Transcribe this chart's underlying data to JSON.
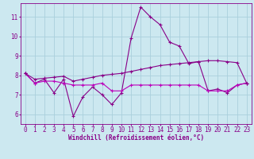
{
  "bg_color": "#cce8f0",
  "grid_color": "#aacfdc",
  "line_color": "#880088",
  "line_color2": "#bb00bb",
  "xlabel": "Windchill (Refroidissement éolien,°C)",
  "xlim": [
    -0.5,
    23.5
  ],
  "ylim": [
    5.5,
    11.7
  ],
  "yticks": [
    6,
    7,
    8,
    9,
    10,
    11
  ],
  "xticks": [
    0,
    1,
    2,
    3,
    4,
    5,
    6,
    7,
    8,
    9,
    10,
    11,
    12,
    13,
    14,
    15,
    16,
    17,
    18,
    19,
    20,
    21,
    22,
    23
  ],
  "line1_x": [
    0,
    1,
    2,
    3,
    4,
    5,
    6,
    7,
    8,
    9,
    10,
    11,
    12,
    13,
    14,
    15,
    16,
    17,
    18,
    19,
    20,
    21,
    22,
    23
  ],
  "line1_y": [
    8.1,
    7.6,
    7.8,
    7.1,
    7.8,
    5.9,
    6.9,
    7.4,
    7.0,
    6.5,
    7.1,
    9.9,
    11.5,
    11.0,
    10.6,
    9.7,
    9.5,
    8.6,
    8.7,
    7.2,
    7.3,
    7.1,
    7.5,
    7.6
  ],
  "line2_x": [
    0,
    1,
    2,
    3,
    4,
    5,
    6,
    7,
    8,
    9,
    10,
    11,
    12,
    13,
    14,
    15,
    16,
    17,
    18,
    19,
    20,
    21,
    22,
    23
  ],
  "line2_y": [
    8.1,
    7.6,
    7.7,
    7.7,
    7.6,
    7.5,
    7.5,
    7.5,
    7.6,
    7.2,
    7.2,
    7.5,
    7.5,
    7.5,
    7.5,
    7.5,
    7.5,
    7.5,
    7.5,
    7.2,
    7.2,
    7.2,
    7.5,
    7.6
  ],
  "line3_x": [
    0,
    1,
    2,
    3,
    4,
    5,
    6,
    7,
    8,
    9,
    10,
    11,
    12,
    13,
    14,
    15,
    16,
    17,
    18,
    19,
    20,
    21,
    22,
    23
  ],
  "line3_y": [
    8.1,
    7.8,
    7.85,
    7.9,
    7.95,
    7.7,
    7.8,
    7.9,
    8.0,
    8.05,
    8.1,
    8.2,
    8.3,
    8.4,
    8.5,
    8.55,
    8.6,
    8.65,
    8.7,
    8.75,
    8.75,
    8.7,
    8.65,
    7.6
  ],
  "tick_fontsize": 5.5,
  "xlabel_fontsize": 5.5
}
